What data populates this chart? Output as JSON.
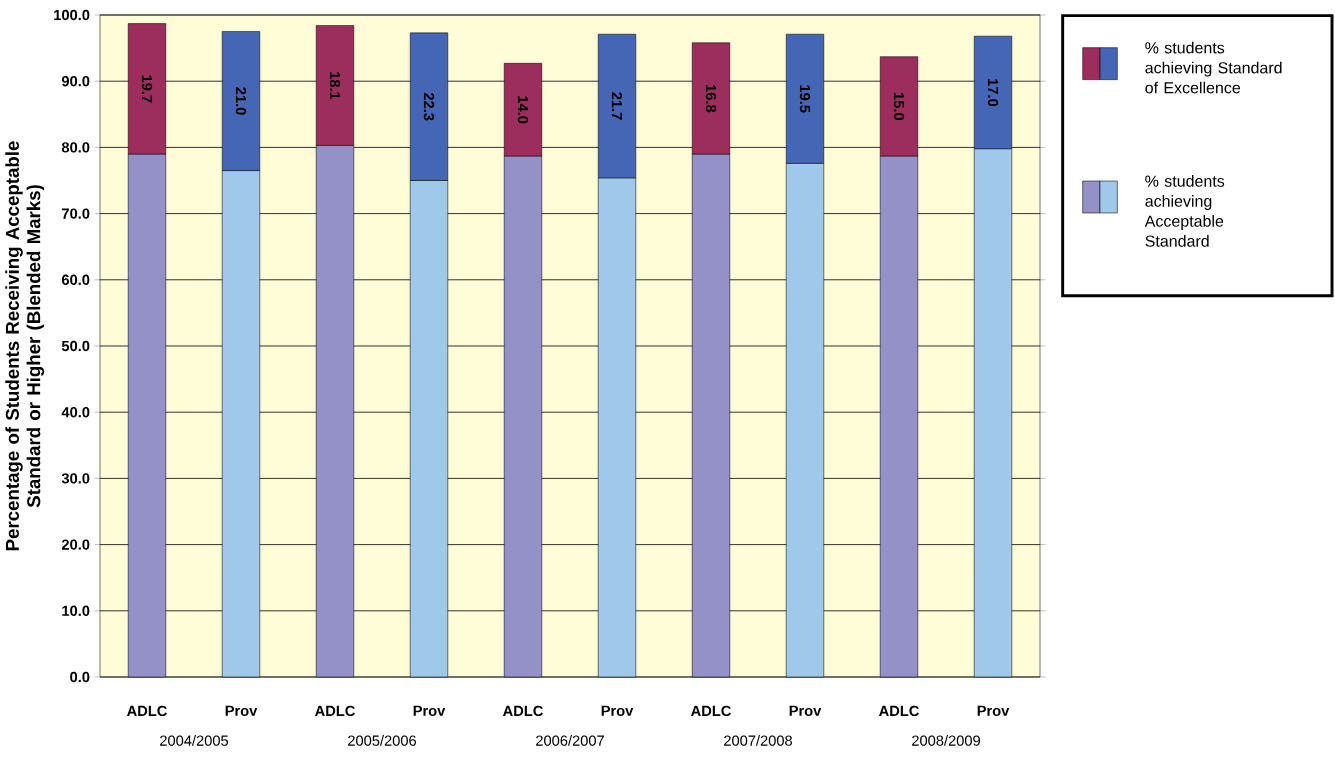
{
  "chart_data": {
    "type": "bar",
    "stacked": true,
    "ylabel": "Percentage of Students Receiving Acceptable Standard or Higher (Blended Marks)",
    "categories": [
      "ADLC",
      "Prov",
      "ADLC",
      "Prov",
      "ADLC",
      "Prov",
      "ADLC",
      "Prov",
      "ADLC",
      "Prov"
    ],
    "series": [
      {
        "name": "% students achieving Acceptable Standard",
        "colors": [
          "#9490c8",
          "#a0c8ea",
          "#9490c8",
          "#a0c8ea",
          "#9490c8",
          "#a0c8ea",
          "#9490c8",
          "#a0c8ea",
          "#9490c8",
          "#a0c8ea"
        ],
        "values": [
          79.0,
          76.5,
          80.3,
          75.0,
          78.7,
          75.4,
          79.0,
          77.6,
          78.7,
          79.8
        ]
      },
      {
        "name": "% students achieving Standard of Excellence",
        "colors": [
          "#9c2e5e",
          "#4466b4",
          "#9c2e5e",
          "#4466b4",
          "#9c2e5e",
          "#4466b4",
          "#9c2e5e",
          "#4466b4",
          "#9c2e5e",
          "#4466b4"
        ],
        "values": [
          19.7,
          21.0,
          18.1,
          22.3,
          14.0,
          21.7,
          16.8,
          19.5,
          15.0,
          17.0
        ],
        "value_labels": [
          "19.7",
          "21.0",
          "18.1",
          "22.3",
          "14.0",
          "21.7",
          "16.8",
          "19.5",
          "15.0",
          "17.0"
        ]
      }
    ],
    "annotations": [
      "2004/2005",
      "2005/2006",
      "2006/2007",
      "2007/2008",
      "2008/2009"
    ],
    "ylim": [
      0,
      100
    ],
    "yticks": [
      {
        "value": 0,
        "label": "0.0"
      },
      {
        "value": 10,
        "label": "10.0"
      },
      {
        "value": 20,
        "label": "20.0"
      },
      {
        "value": 30,
        "label": "30.0"
      },
      {
        "value": 40,
        "label": "40.0"
      },
      {
        "value": 50,
        "label": "50.0"
      },
      {
        "value": 60,
        "label": "60.0"
      },
      {
        "value": 70,
        "label": "70.0"
      },
      {
        "value": 80,
        "label": "80.0"
      },
      {
        "value": 90,
        "label": "90.0"
      },
      {
        "value": 100,
        "label": "100.0"
      }
    ],
    "grid": "y",
    "legend": "right"
  }
}
